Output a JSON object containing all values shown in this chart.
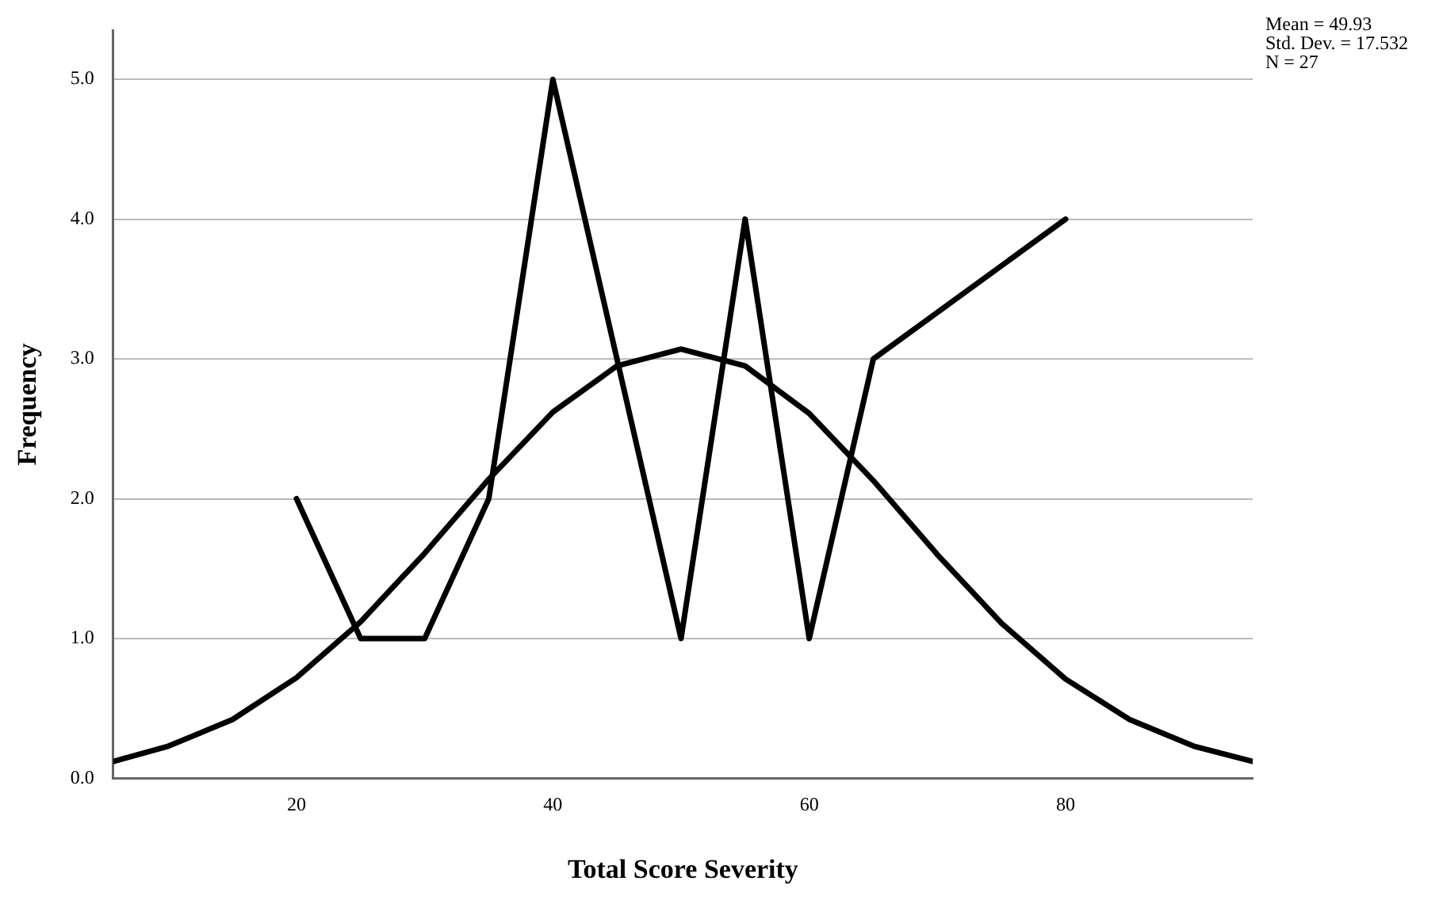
{
  "chart_data": {
    "type": "line",
    "xlabel": "Total Score Severity",
    "ylabel": "Frequency",
    "annotations": [
      "Mean = 49.93",
      "Std. Dev. = 17.532",
      "N = 27"
    ],
    "xlim": [
      5.7,
      94.6
    ],
    "xticks": [
      20,
      40,
      60,
      80
    ],
    "ylim": [
      0,
      5.35
    ],
    "yticks": [
      {
        "value": 0,
        "label": "0.0"
      },
      {
        "value": 1,
        "label": "1.0"
      },
      {
        "value": 2,
        "label": "2.0"
      },
      {
        "value": 3,
        "label": "3.0"
      },
      {
        "value": 4,
        "label": "4.0"
      },
      {
        "value": 5,
        "label": "5.0"
      }
    ],
    "grid": "y",
    "legend": false,
    "marker": "none",
    "line_style": "solid",
    "series": [
      {
        "color": "#000000",
        "x": [
          20,
          25,
          30,
          35,
          40,
          50,
          55,
          60,
          65,
          80
        ],
        "values": [
          2,
          1,
          1,
          2,
          5,
          1,
          4,
          1,
          3,
          4
        ]
      },
      {
        "color": "#000000",
        "x": [
          5.7,
          10,
          15,
          20,
          25,
          30,
          35,
          40,
          45,
          50,
          55,
          60,
          65,
          70,
          75,
          80,
          85,
          90,
          94.6
        ],
        "values": [
          0.12,
          0.23,
          0.42,
          0.72,
          1.12,
          1.61,
          2.14,
          2.62,
          2.95,
          3.07,
          2.95,
          2.61,
          2.13,
          1.6,
          1.11,
          0.71,
          0.42,
          0.23,
          0.12
        ]
      }
    ]
  }
}
